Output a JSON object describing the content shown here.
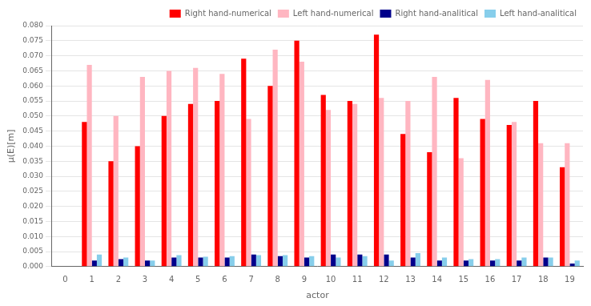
{
  "chart_data": {
    "type": "bar",
    "xlabel": "actor",
    "ylabel": "μ(E)[m]",
    "x": [
      1,
      2,
      3,
      4,
      5,
      6,
      7,
      8,
      9,
      10,
      11,
      12,
      13,
      14,
      15,
      16,
      17,
      18,
      19
    ],
    "series": [
      {
        "name": "Right hand-numerical",
        "color": "#FF0000",
        "values": [
          0.048,
          0.035,
          0.04,
          0.05,
          0.054,
          0.055,
          0.069,
          0.06,
          0.075,
          0.057,
          0.055,
          0.077,
          0.044,
          0.038,
          0.056,
          0.049,
          0.047,
          0.055,
          0.033
        ]
      },
      {
        "name": "Left hand-numerical",
        "color": "#FFB6C1",
        "values": [
          0.067,
          0.05,
          0.063,
          0.065,
          0.066,
          0.064,
          0.049,
          0.072,
          0.068,
          0.052,
          0.054,
          0.056,
          0.055,
          0.063,
          0.036,
          0.062,
          0.048,
          0.041,
          0.041
        ]
      },
      {
        "name": "Right hand-analitical",
        "color": "#00008B",
        "values": [
          0.002,
          0.0025,
          0.002,
          0.003,
          0.003,
          0.003,
          0.004,
          0.0035,
          0.003,
          0.004,
          0.004,
          0.004,
          0.003,
          0.002,
          0.002,
          0.002,
          0.002,
          0.003,
          0.001
        ]
      },
      {
        "name": "Left hand-analitical",
        "color": "#87CEEB",
        "values": [
          0.004,
          0.003,
          0.002,
          0.0038,
          0.0033,
          0.0035,
          0.0038,
          0.0038,
          0.0035,
          0.003,
          0.0035,
          0.002,
          0.0045,
          0.003,
          0.0025,
          0.0025,
          0.003,
          0.003,
          0.002
        ]
      }
    ],
    "xlim": [
      -0.5,
      19.5
    ],
    "xticks": [
      0,
      1,
      2,
      3,
      4,
      5,
      6,
      7,
      8,
      9,
      10,
      11,
      12,
      13,
      14,
      15,
      16,
      17,
      18,
      19
    ],
    "ylim": [
      0,
      0.08
    ],
    "yticks": [
      {
        "value": 0,
        "label": "0.000"
      },
      0.005,
      {
        "value": 0.01,
        "label": "0.010"
      },
      0.015,
      {
        "value": 0.02,
        "label": "0.020"
      },
      0.025,
      {
        "value": 0.03,
        "label": "0.030"
      },
      0.035,
      {
        "value": 0.04,
        "label": "0.040"
      },
      0.045,
      {
        "value": 0.05,
        "label": "0.050"
      },
      0.055,
      {
        "value": 0.06,
        "label": "0.060"
      },
      0.065,
      {
        "value": 0.07,
        "label": "0.070"
      },
      0.075,
      {
        "value": 0.08,
        "label": "0.080"
      }
    ],
    "grid": "y",
    "legend": "upper right"
  }
}
